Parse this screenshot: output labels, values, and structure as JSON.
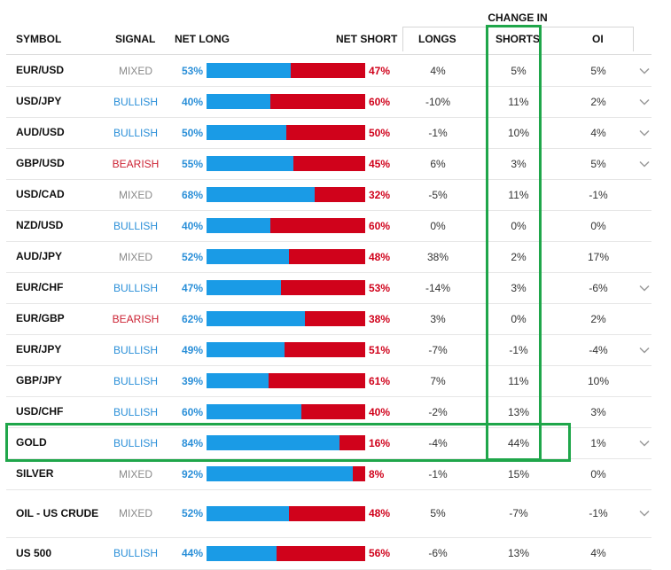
{
  "header": {
    "change_in": "CHANGE IN",
    "symbol": "SYMBOL",
    "signal": "SIGNAL",
    "net_long": "NET LONG",
    "net_short": "NET SHORT",
    "longs": "LONGS",
    "shorts": "SHORTS",
    "oi": "OI"
  },
  "colors": {
    "long_bar": "#1a9be6",
    "short_bar": "#d0021b",
    "bullish": "#2a8fd8",
    "bearish": "#cc2233",
    "mixed": "#8a8a8a",
    "highlight": "#1fa64a"
  },
  "rows": [
    {
      "symbol": "EUR/USD",
      "signal": "MIXED",
      "net_long": "53%",
      "net_short": "47%",
      "long_pct": 53,
      "longs": "4%",
      "shorts": "5%",
      "oi": "5%",
      "expand": true
    },
    {
      "symbol": "USD/JPY",
      "signal": "BULLISH",
      "net_long": "40%",
      "net_short": "60%",
      "long_pct": 40,
      "longs": "-10%",
      "shorts": "11%",
      "oi": "2%",
      "expand": true
    },
    {
      "symbol": "AUD/USD",
      "signal": "BULLISH",
      "net_long": "50%",
      "net_short": "50%",
      "long_pct": 50,
      "longs": "-1%",
      "shorts": "10%",
      "oi": "4%",
      "expand": true
    },
    {
      "symbol": "GBP/USD",
      "signal": "BEARISH",
      "net_long": "55%",
      "net_short": "45%",
      "long_pct": 55,
      "longs": "6%",
      "shorts": "3%",
      "oi": "5%",
      "expand": true
    },
    {
      "symbol": "USD/CAD",
      "signal": "MIXED",
      "net_long": "68%",
      "net_short": "32%",
      "long_pct": 68,
      "longs": "-5%",
      "shorts": "11%",
      "oi": "-1%",
      "expand": false
    },
    {
      "symbol": "NZD/USD",
      "signal": "BULLISH",
      "net_long": "40%",
      "net_short": "60%",
      "long_pct": 40,
      "longs": "0%",
      "shorts": "0%",
      "oi": "0%",
      "expand": false
    },
    {
      "symbol": "AUD/JPY",
      "signal": "MIXED",
      "net_long": "52%",
      "net_short": "48%",
      "long_pct": 52,
      "longs": "38%",
      "shorts": "2%",
      "oi": "17%",
      "expand": false
    },
    {
      "symbol": "EUR/CHF",
      "signal": "BULLISH",
      "net_long": "47%",
      "net_short": "53%",
      "long_pct": 47,
      "longs": "-14%",
      "shorts": "3%",
      "oi": "-6%",
      "expand": true
    },
    {
      "symbol": "EUR/GBP",
      "signal": "BEARISH",
      "net_long": "62%",
      "net_short": "38%",
      "long_pct": 62,
      "longs": "3%",
      "shorts": "0%",
      "oi": "2%",
      "expand": false
    },
    {
      "symbol": "EUR/JPY",
      "signal": "BULLISH",
      "net_long": "49%",
      "net_short": "51%",
      "long_pct": 49,
      "longs": "-7%",
      "shorts": "-1%",
      "oi": "-4%",
      "expand": true
    },
    {
      "symbol": "GBP/JPY",
      "signal": "BULLISH",
      "net_long": "39%",
      "net_short": "61%",
      "long_pct": 39,
      "longs": "7%",
      "shorts": "11%",
      "oi": "10%",
      "expand": false
    },
    {
      "symbol": "USD/CHF",
      "signal": "BULLISH",
      "net_long": "60%",
      "net_short": "40%",
      "long_pct": 60,
      "longs": "-2%",
      "shorts": "13%",
      "oi": "3%",
      "expand": false
    },
    {
      "symbol": "GOLD",
      "signal": "BULLISH",
      "net_long": "84%",
      "net_short": "16%",
      "long_pct": 84,
      "longs": "-4%",
      "shorts": "44%",
      "oi": "1%",
      "expand": true
    },
    {
      "symbol": "SILVER",
      "signal": "MIXED",
      "net_long": "92%",
      "net_short": "8%",
      "long_pct": 92,
      "longs": "-1%",
      "shorts": "15%",
      "oi": "0%",
      "expand": false
    },
    {
      "symbol": "OIL - US CRUDE",
      "signal": "MIXED",
      "net_long": "52%",
      "net_short": "48%",
      "long_pct": 52,
      "longs": "5%",
      "shorts": "-7%",
      "oi": "-1%",
      "expand": true
    },
    {
      "symbol": "US 500",
      "signal": "BULLISH",
      "net_long": "44%",
      "net_short": "56%",
      "long_pct": 44,
      "longs": "-6%",
      "shorts": "13%",
      "oi": "4%",
      "expand": false
    }
  ]
}
